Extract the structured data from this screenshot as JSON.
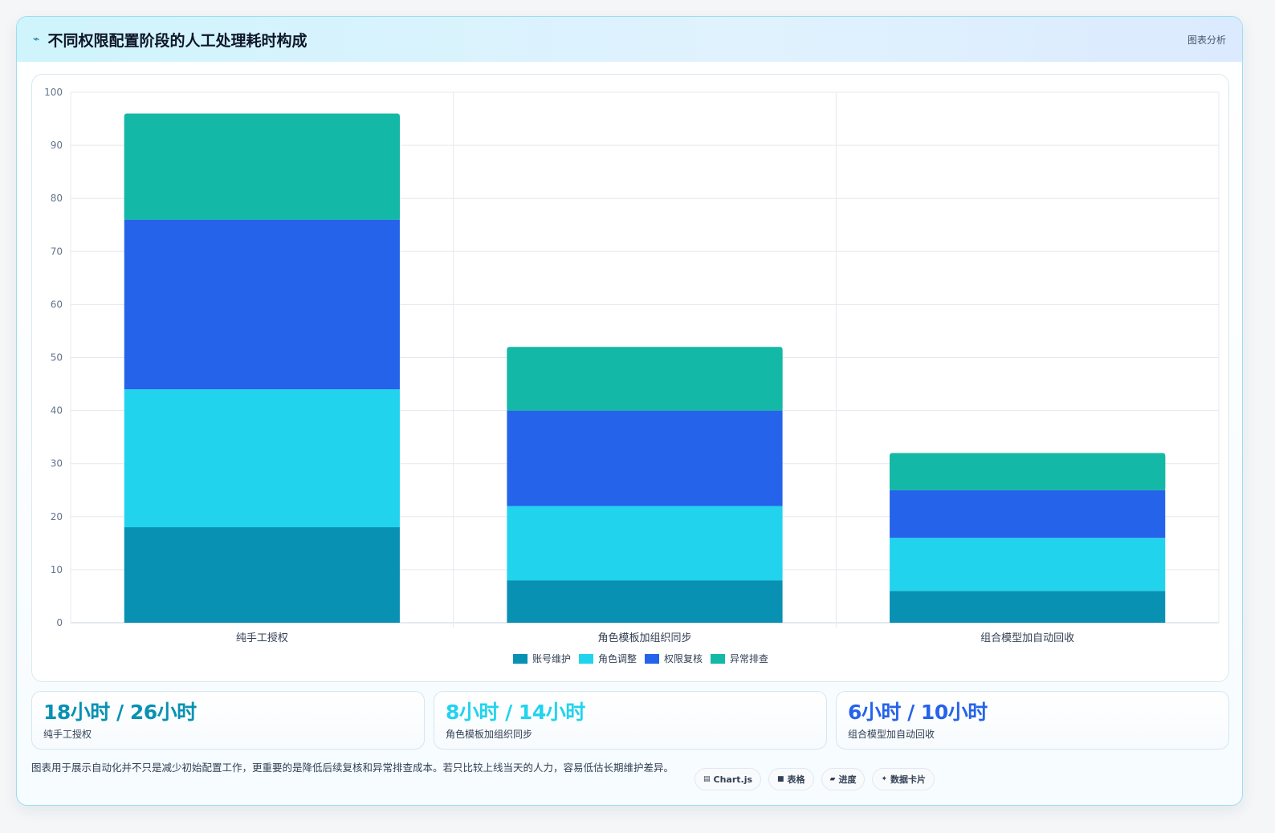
{
  "header": {
    "icon": "⌁",
    "title": "不同权限配置阶段的人工处理耗时构成",
    "tag": "图表分析"
  },
  "colors": {
    "series": [
      "#0891b2",
      "#22d3ee",
      "#2563eb",
      "#14b8a6"
    ]
  },
  "chart_data": {
    "type": "bar",
    "stacked": true,
    "title": "",
    "xlabel": "",
    "ylabel": "",
    "ylim": [
      0,
      100
    ],
    "yticks": [
      0,
      10,
      20,
      30,
      40,
      50,
      60,
      70,
      80,
      90,
      100
    ],
    "grid": true,
    "legend_position": "bottom",
    "categories": [
      "纯手工授权",
      "角色模板加组织同步",
      "组合模型加自动回收"
    ],
    "series": [
      {
        "name": "账号维护",
        "color": "#0891b2",
        "values": [
          18,
          8,
          6
        ]
      },
      {
        "name": "角色调整",
        "color": "#22d3ee",
        "values": [
          26,
          14,
          10
        ]
      },
      {
        "name": "权限复核",
        "color": "#2563eb",
        "values": [
          32,
          18,
          9
        ]
      },
      {
        "name": "异常排查",
        "color": "#14b8a6",
        "values": [
          20,
          12,
          7
        ]
      }
    ]
  },
  "stats": [
    {
      "value": "18小时 / 26小时",
      "label": "纯手工授权",
      "color": "#0891b2"
    },
    {
      "value": "8小时 / 14小时",
      "label": "角色模板加组织同步",
      "color": "#22d3ee"
    },
    {
      "value": "6小时 / 10小时",
      "label": "组合模型加自动回收",
      "color": "#2563eb"
    }
  ],
  "footer": {
    "note": "图表用于展示自动化并不只是减少初始配置工作，更重要的是降低后续复核和异常排查成本。若只比较上线当天的人力，容易低估长期维护差异。",
    "chips": [
      {
        "icon": "▤",
        "label": "Chart.js"
      },
      {
        "icon": "■",
        "label": "表格"
      },
      {
        "icon": "▰",
        "label": "进度"
      },
      {
        "icon": "✦",
        "label": "数据卡片"
      }
    ]
  }
}
